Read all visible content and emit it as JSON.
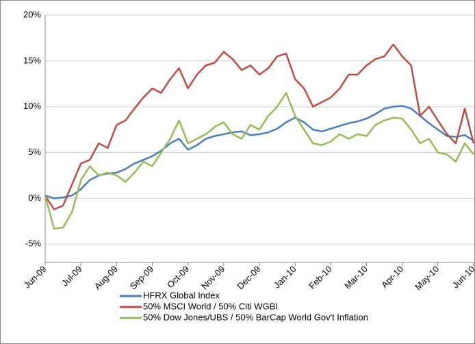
{
  "chart_data": {
    "type": "line",
    "categories": [
      "Jun-09",
      null,
      null,
      null,
      "Jul-09",
      null,
      null,
      null,
      "Aug-09",
      null,
      null,
      null,
      "Sep-09",
      null,
      null,
      null,
      "Oct-09",
      null,
      null,
      null,
      "Nov-09",
      null,
      null,
      null,
      "Dec-09",
      null,
      null,
      null,
      "Jan-10",
      null,
      null,
      null,
      "Feb-10",
      null,
      null,
      null,
      "Mar-10",
      null,
      null,
      null,
      "Apr-10",
      null,
      null,
      null,
      "May-10",
      null,
      null,
      null,
      "Jun-10"
    ],
    "series": [
      {
        "name": "HFRX Global Index",
        "color": "#4a7ebb",
        "values": [
          0.3,
          0,
          0.1,
          0.3,
          1.0,
          2.0,
          2.5,
          2.7,
          2.8,
          3.2,
          3.8,
          4.2,
          4.6,
          5.2,
          6.0,
          6.5,
          5.3,
          5.8,
          6.5,
          6.8,
          7.0,
          7.2,
          7.3,
          6.9,
          7.0,
          7.2,
          7.6,
          8.3,
          8.8,
          8.3,
          7.5,
          7.3,
          7.6,
          7.9,
          8.2,
          8.4,
          8.7,
          9.2,
          9.8,
          10.0,
          10.1,
          9.8,
          9.0,
          8.2,
          7.5,
          6.8,
          6.7,
          6.9,
          6.3
        ]
      },
      {
        "name": "50% MSCI World / 50% Citi WGBI",
        "color": "#be4b48",
        "values": [
          0.3,
          -1.2,
          -0.8,
          1.5,
          3.8,
          4.2,
          6.0,
          5.5,
          8.0,
          8.5,
          9.8,
          11.0,
          12.0,
          11.5,
          13.0,
          14.2,
          12.0,
          13.5,
          14.5,
          14.8,
          16.0,
          15.2,
          14.0,
          14.5,
          13.5,
          14.2,
          15.5,
          15.8,
          13.0,
          12.0,
          10.0,
          10.5,
          11.0,
          12.0,
          13.5,
          13.5,
          14.5,
          15.2,
          15.5,
          16.8,
          15.5,
          14.5,
          9.0,
          10.0,
          8.5,
          7.0,
          6.0,
          9.8,
          6.0
        ]
      },
      {
        "name": "50% Dow Jones/UBS / 50% BarCap World Gov't Inflation",
        "color": "#98b954",
        "values": [
          0.3,
          -3.3,
          -3.2,
          -1.5,
          2.0,
          3.5,
          2.5,
          2.8,
          2.5,
          1.8,
          2.8,
          4.0,
          3.5,
          5.0,
          6.5,
          8.5,
          6.0,
          6.5,
          7.0,
          7.8,
          8.3,
          7.0,
          6.5,
          8.0,
          7.5,
          9.0,
          10.0,
          11.5,
          9.0,
          7.5,
          6.0,
          5.8,
          6.2,
          7.0,
          6.5,
          7.0,
          6.8,
          8.0,
          8.5,
          8.8,
          8.7,
          7.5,
          6.0,
          6.5,
          5.0,
          4.8,
          4.0,
          6.0,
          4.8
        ]
      }
    ],
    "ylim": [
      -7,
      20
    ],
    "yticks": [
      {
        "value": -5,
        "label": "-5%"
      },
      {
        "value": 0,
        "label": "0%"
      },
      {
        "value": 5,
        "label": "5%"
      },
      {
        "value": 10,
        "label": "10%"
      },
      {
        "value": 15,
        "label": "15%"
      },
      {
        "value": 20,
        "label": "20%"
      }
    ],
    "grid": true
  }
}
